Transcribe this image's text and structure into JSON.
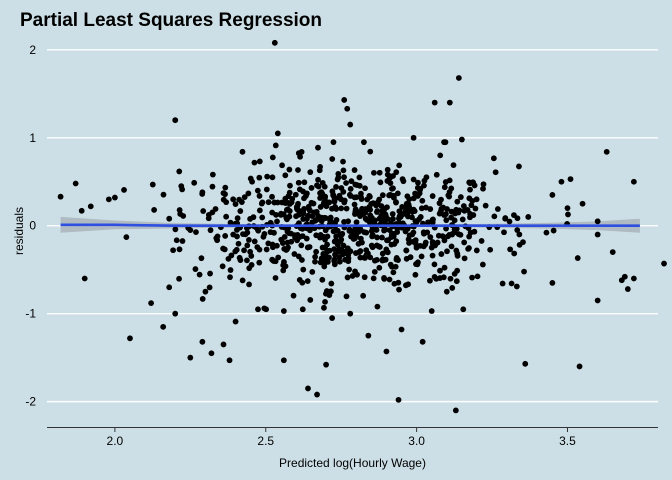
{
  "chart_data": {
    "type": "scatter",
    "title": "Partial Least Squares Regression",
    "xlabel": "Predicted log(Hourly Wage)",
    "ylabel": "residuals",
    "xlim": [
      1.775,
      3.8
    ],
    "ylim": [
      -2.3,
      2.18
    ],
    "xticks": [
      2.0,
      2.5,
      3.0,
      3.5
    ],
    "xtick_labels": [
      "2.0",
      "2.5",
      "3.0",
      "3.5"
    ],
    "yticks": [
      -2,
      -1,
      0,
      1,
      2
    ],
    "ytick_labels": [
      "-2",
      "-1",
      "0",
      "1",
      "2"
    ],
    "grid": "horizontal",
    "colors": {
      "background": "#cddfe6",
      "grid": "#ffffff",
      "points": "#000000",
      "smooth_line": "#2f4fe0",
      "confidence_band": "#a9b4bb"
    },
    "smooth_line": {
      "x": [
        1.82,
        2.0,
        2.2,
        2.4,
        2.6,
        2.8,
        3.0,
        3.2,
        3.4,
        3.6,
        3.74
      ],
      "y": [
        0.01,
        0.01,
        0.0,
        0.0,
        0.0,
        0.0,
        0.0,
        0.0,
        0.0,
        0.0,
        0.0
      ],
      "band_halfwidth": [
        0.09,
        0.05,
        0.03,
        0.02,
        0.015,
        0.015,
        0.015,
        0.02,
        0.03,
        0.05,
        0.08
      ]
    },
    "points": {
      "x": [
        2.53,
        3.14,
        2.76,
        2.77,
        3.06,
        3.11,
        2.2,
        2.78,
        2.54,
        2.99,
        3.15,
        3.63,
        3.72,
        3.48,
        3.51,
        2.22,
        2.29,
        3.82,
        1.82,
        1.87,
        1.89,
        1.92,
        1.98,
        2.0,
        2.13,
        2.18,
        2.25,
        3.37,
        3.45,
        3.5,
        3.55,
        3.6,
        3.65,
        3.68,
        3.7,
        1.9,
        2.05,
        2.12,
        2.16,
        2.18,
        2.3,
        2.4,
        2.29,
        2.2,
        2.25,
        2.32,
        2.36,
        2.38,
        2.56,
        2.56,
        2.64,
        2.67,
        2.7,
        2.72,
        2.78,
        2.84,
        2.87,
        2.9,
        2.95,
        3.02,
        3.05,
        3.1,
        3.36,
        3.54,
        2.94,
        3.13,
        3.72,
        3.69,
        3.6,
        3.6,
        3.45
      ],
      "y": [
        2.08,
        1.68,
        1.43,
        1.33,
        1.4,
        1.4,
        1.2,
        1.15,
        1.05,
        1.0,
        0.98,
        0.84,
        0.5,
        0.5,
        0.53,
        0.45,
        0.38,
        -0.43,
        0.33,
        0.48,
        0.17,
        0.22,
        0.3,
        0.32,
        0.18,
        0.08,
        -0.05,
        0.1,
        0.35,
        0.2,
        0.25,
        0.05,
        -0.3,
        -0.62,
        -0.72,
        -0.6,
        -1.28,
        -0.88,
        -1.15,
        -0.7,
        -0.75,
        -1.09,
        -1.32,
        -1.0,
        -1.5,
        -1.45,
        -1.35,
        -1.53,
        -1.53,
        -0.97,
        -1.85,
        -1.92,
        -1.58,
        -1.05,
        -1.0,
        -1.25,
        -0.92,
        -1.43,
        -1.18,
        -1.32,
        -0.97,
        -0.75,
        -1.57,
        -1.6,
        -1.98,
        -2.1,
        -0.6,
        -0.58,
        -0.85,
        -0.1,
        -0.65
      ]
    }
  }
}
